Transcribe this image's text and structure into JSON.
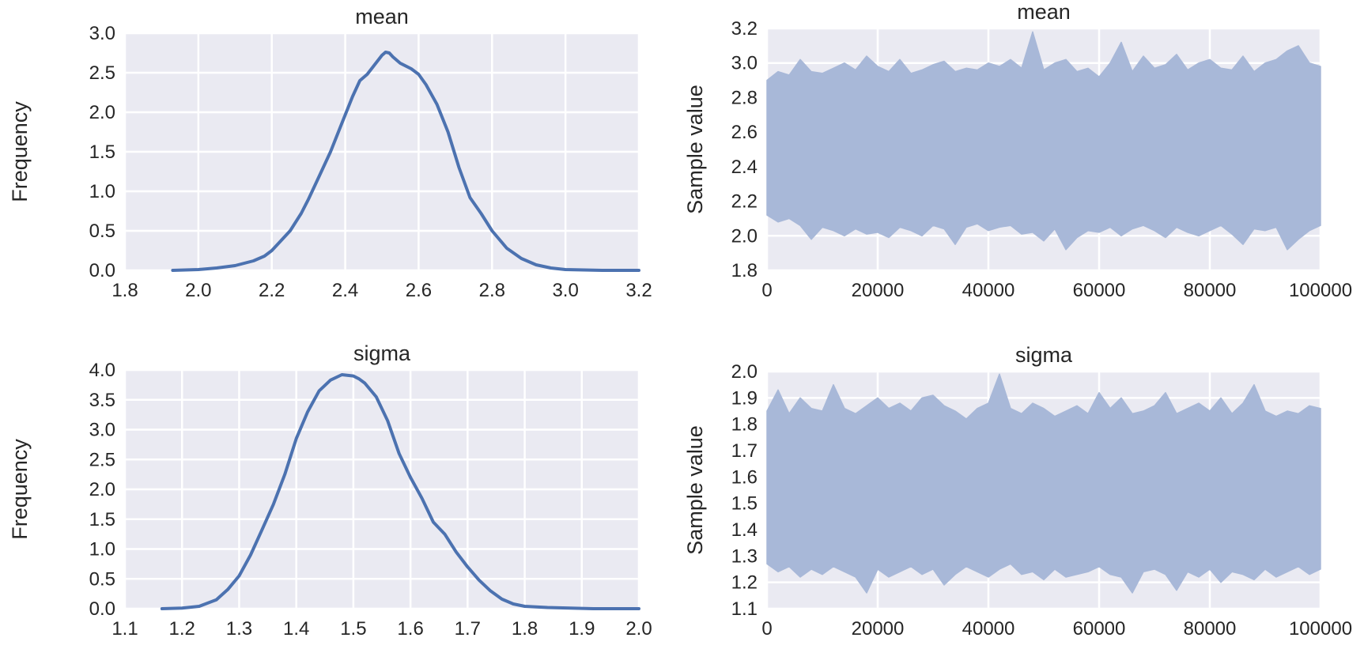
{
  "chart_data": [
    {
      "type": "line",
      "title": "mean",
      "xlabel": "",
      "ylabel": "Frequency",
      "xlim": [
        1.8,
        3.2
      ],
      "ylim": [
        0.0,
        3.0
      ],
      "x_ticks": [
        "1.8",
        "2.0",
        "2.2",
        "2.4",
        "2.6",
        "2.8",
        "3.0",
        "3.2"
      ],
      "y_ticks": [
        "0.0",
        "0.5",
        "1.0",
        "1.5",
        "2.0",
        "2.5",
        "3.0"
      ],
      "grid": true,
      "series": [
        {
          "color": "#4c72b0",
          "x": [
            1.93,
            2.0,
            2.05,
            2.1,
            2.15,
            2.18,
            2.2,
            2.22,
            2.25,
            2.28,
            2.3,
            2.33,
            2.36,
            2.39,
            2.42,
            2.44,
            2.46,
            2.48,
            2.5,
            2.51,
            2.52,
            2.53,
            2.55,
            2.58,
            2.6,
            2.62,
            2.65,
            2.68,
            2.71,
            2.74,
            2.77,
            2.8,
            2.84,
            2.88,
            2.92,
            2.96,
            3.0,
            3.1,
            3.2
          ],
          "y": [
            0.0,
            0.01,
            0.03,
            0.06,
            0.12,
            0.18,
            0.25,
            0.35,
            0.5,
            0.72,
            0.9,
            1.2,
            1.5,
            1.85,
            2.2,
            2.4,
            2.48,
            2.6,
            2.72,
            2.76,
            2.75,
            2.7,
            2.62,
            2.55,
            2.48,
            2.35,
            2.1,
            1.75,
            1.3,
            0.92,
            0.72,
            0.5,
            0.28,
            0.15,
            0.07,
            0.03,
            0.01,
            0.0,
            0.0
          ]
        }
      ]
    },
    {
      "type": "area",
      "title": "mean",
      "xlabel": "",
      "ylabel": "Sample value",
      "xlim": [
        0,
        100000
      ],
      "ylim": [
        1.8,
        3.2
      ],
      "x_ticks": [
        "0",
        "20000",
        "40000",
        "60000",
        "80000",
        "100000"
      ],
      "y_ticks": [
        "1.8",
        "2.0",
        "2.2",
        "2.4",
        "2.6",
        "2.8",
        "3.0",
        "3.2"
      ],
      "grid": true,
      "series": [
        {
          "color": "#a8b8d8",
          "band_x": [
            0,
            2000,
            4000,
            6000,
            8000,
            10000,
            12000,
            14000,
            16000,
            18000,
            20000,
            22000,
            24000,
            26000,
            28000,
            30000,
            32000,
            34000,
            36000,
            38000,
            40000,
            42000,
            44000,
            46000,
            48000,
            50000,
            52000,
            54000,
            56000,
            58000,
            60000,
            62000,
            64000,
            66000,
            68000,
            70000,
            72000,
            74000,
            76000,
            78000,
            80000,
            82000,
            84000,
            86000,
            88000,
            90000,
            92000,
            94000,
            96000,
            98000,
            100000
          ],
          "band_high": [
            2.9,
            2.95,
            2.93,
            3.02,
            2.95,
            2.94,
            2.97,
            3.0,
            2.96,
            3.04,
            2.98,
            2.95,
            3.02,
            2.94,
            2.96,
            2.99,
            3.01,
            2.95,
            2.97,
            2.96,
            3.0,
            2.98,
            3.02,
            2.97,
            3.18,
            2.96,
            3.0,
            3.02,
            2.95,
            2.97,
            2.92,
            3.0,
            3.12,
            2.95,
            3.04,
            2.97,
            2.99,
            3.05,
            2.96,
            3.0,
            3.02,
            2.97,
            2.96,
            3.04,
            2.95,
            3.0,
            3.02,
            3.07,
            3.1,
            3.0,
            2.98
          ],
          "band_low": [
            2.12,
            2.08,
            2.1,
            2.06,
            1.98,
            2.05,
            2.03,
            2.0,
            2.04,
            2.01,
            2.02,
            1.99,
            2.05,
            2.03,
            2.0,
            2.06,
            2.04,
            1.95,
            2.05,
            2.07,
            2.03,
            2.05,
            2.06,
            2.01,
            2.02,
            1.97,
            2.04,
            1.92,
            1.99,
            2.03,
            2.02,
            2.05,
            2.0,
            2.04,
            2.06,
            2.03,
            1.99,
            2.05,
            2.02,
            2.0,
            2.03,
            2.06,
            2.01,
            1.95,
            2.04,
            2.03,
            2.05,
            1.92,
            1.98,
            2.03,
            2.06
          ]
        }
      ]
    },
    {
      "type": "line",
      "title": "sigma",
      "xlabel": "",
      "ylabel": "Frequency",
      "xlim": [
        1.1,
        2.0
      ],
      "ylim": [
        0.0,
        4.0
      ],
      "x_ticks": [
        "1.1",
        "1.2",
        "1.3",
        "1.4",
        "1.5",
        "1.6",
        "1.7",
        "1.8",
        "1.9",
        "2.0"
      ],
      "y_ticks": [
        "0.0",
        "0.5",
        "1.0",
        "1.5",
        "2.0",
        "2.5",
        "3.0",
        "3.5",
        "4.0"
      ],
      "grid": true,
      "series": [
        {
          "color": "#4c72b0",
          "x": [
            1.165,
            1.2,
            1.23,
            1.26,
            1.28,
            1.3,
            1.32,
            1.34,
            1.36,
            1.38,
            1.4,
            1.42,
            1.44,
            1.46,
            1.48,
            1.5,
            1.51,
            1.52,
            1.54,
            1.56,
            1.58,
            1.6,
            1.62,
            1.64,
            1.66,
            1.68,
            1.7,
            1.72,
            1.74,
            1.76,
            1.78,
            1.8,
            1.84,
            1.88,
            1.92,
            1.96,
            2.0
          ],
          "y": [
            0.0,
            0.01,
            0.04,
            0.15,
            0.32,
            0.55,
            0.9,
            1.32,
            1.75,
            2.25,
            2.85,
            3.3,
            3.65,
            3.83,
            3.92,
            3.9,
            3.85,
            3.78,
            3.55,
            3.15,
            2.6,
            2.2,
            1.85,
            1.45,
            1.25,
            0.95,
            0.7,
            0.48,
            0.3,
            0.16,
            0.08,
            0.04,
            0.02,
            0.01,
            0.0,
            0.0,
            0.0
          ]
        }
      ]
    },
    {
      "type": "area",
      "title": "sigma",
      "xlabel": "",
      "ylabel": "Sample value",
      "xlim": [
        0,
        100000
      ],
      "ylim": [
        1.1,
        2.0
      ],
      "x_ticks": [
        "0",
        "20000",
        "40000",
        "60000",
        "80000",
        "100000"
      ],
      "y_ticks": [
        "1.1",
        "1.2",
        "1.3",
        "1.4",
        "1.5",
        "1.6",
        "1.7",
        "1.8",
        "1.9",
        "2.0"
      ],
      "grid": true,
      "series": [
        {
          "color": "#a8b8d8",
          "band_x": [
            0,
            2000,
            4000,
            6000,
            8000,
            10000,
            12000,
            14000,
            16000,
            18000,
            20000,
            22000,
            24000,
            26000,
            28000,
            30000,
            32000,
            34000,
            36000,
            38000,
            40000,
            42000,
            44000,
            46000,
            48000,
            50000,
            52000,
            54000,
            56000,
            58000,
            60000,
            62000,
            64000,
            66000,
            68000,
            70000,
            72000,
            74000,
            76000,
            78000,
            80000,
            82000,
            84000,
            86000,
            88000,
            90000,
            92000,
            94000,
            96000,
            98000,
            100000
          ],
          "band_high": [
            1.85,
            1.93,
            1.84,
            1.9,
            1.86,
            1.85,
            1.95,
            1.86,
            1.84,
            1.87,
            1.9,
            1.86,
            1.88,
            1.85,
            1.9,
            1.91,
            1.87,
            1.85,
            1.82,
            1.86,
            1.88,
            1.99,
            1.86,
            1.84,
            1.88,
            1.86,
            1.83,
            1.85,
            1.87,
            1.84,
            1.92,
            1.86,
            1.9,
            1.84,
            1.85,
            1.87,
            1.92,
            1.84,
            1.86,
            1.88,
            1.85,
            1.9,
            1.84,
            1.88,
            1.95,
            1.85,
            1.83,
            1.85,
            1.84,
            1.87,
            1.86
          ],
          "band_low": [
            1.27,
            1.24,
            1.26,
            1.22,
            1.25,
            1.23,
            1.26,
            1.24,
            1.22,
            1.16,
            1.25,
            1.22,
            1.24,
            1.26,
            1.23,
            1.25,
            1.19,
            1.23,
            1.26,
            1.24,
            1.22,
            1.25,
            1.27,
            1.23,
            1.24,
            1.21,
            1.25,
            1.22,
            1.23,
            1.24,
            1.26,
            1.23,
            1.22,
            1.16,
            1.24,
            1.25,
            1.23,
            1.17,
            1.24,
            1.22,
            1.25,
            1.2,
            1.24,
            1.23,
            1.21,
            1.25,
            1.22,
            1.24,
            1.26,
            1.23,
            1.25
          ]
        }
      ]
    }
  ]
}
